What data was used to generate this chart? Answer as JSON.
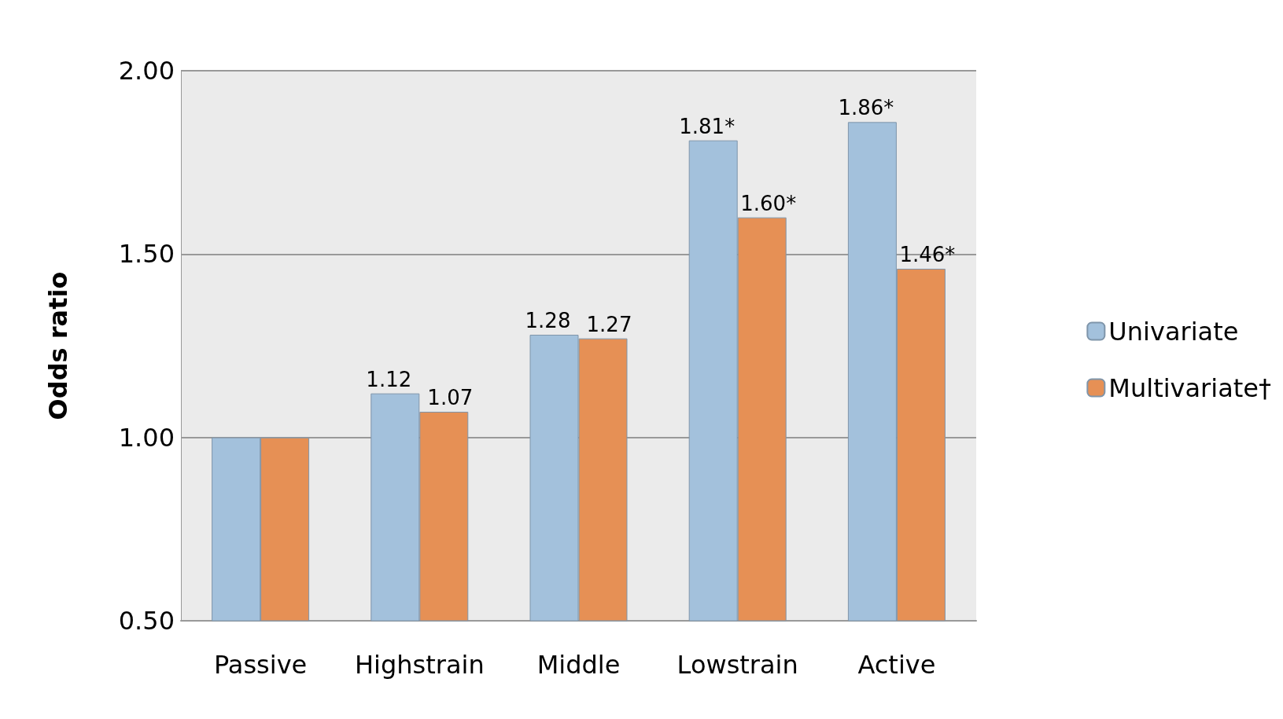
{
  "chart_data": {
    "type": "bar",
    "ylabel": "Odds ratio",
    "categories": [
      "Passive",
      "Highstrain",
      "Middle",
      "Lowstrain",
      "Active"
    ],
    "series": [
      {
        "name": "Univariate",
        "color": "#a3c1dc",
        "values": [
          1.0,
          1.12,
          1.28,
          1.81,
          1.86
        ],
        "value_labels": [
          null,
          "1.12",
          "1.28",
          "1.81*",
          "1.86*"
        ]
      },
      {
        "name": "Multivariate†",
        "color": "#e69055",
        "values": [
          1.0,
          1.07,
          1.27,
          1.6,
          1.46
        ],
        "value_labels": [
          null,
          "1.07",
          "1.27",
          "1.60*",
          "1.46*"
        ]
      }
    ],
    "ylim": [
      0.5,
      2.0
    ],
    "yticks": [
      {
        "value": 0.5,
        "label": "0.50"
      },
      {
        "value": 1.0,
        "label": "1.00"
      },
      {
        "value": 1.5,
        "label": "1.50"
      },
      {
        "value": 2.0,
        "label": "2.00"
      }
    ],
    "grid": "y",
    "legend": "right"
  }
}
